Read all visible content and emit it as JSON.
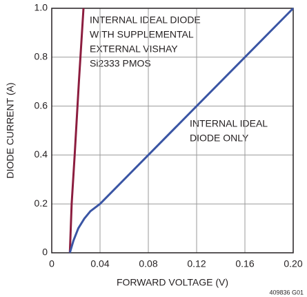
{
  "chart_data": {
    "type": "line",
    "x_label": "FORWARD VOLTAGE (V)",
    "y_label": "DIODE CURRENT (A)",
    "figure_id": "409836 G01",
    "annotations": [
      {
        "lines": [
          "INTERNAL IDEAL DIODE",
          "WITH SUPPLEMENTAL",
          "EXTERNAL VISHAY",
          "Si2333 PMOS"
        ]
      },
      {
        "lines": [
          "INTERNAL IDEAL",
          "DIODE ONLY"
        ]
      }
    ],
    "xlim": [
      0,
      0.2
    ],
    "ylim": [
      0,
      1.0
    ],
    "xticks": [
      0,
      0.04,
      0.08,
      0.12,
      0.16,
      {
        "value": 0.2,
        "label": "0.20"
      }
    ],
    "yticks": [
      0,
      0.2,
      0.4,
      0.6,
      0.8,
      {
        "value": 1.0,
        "label": "1.0"
      }
    ],
    "grid": true,
    "series": [
      {
        "color": "#8c1d3f",
        "x": [
          0.015,
          0.0165,
          0.019,
          0.0225,
          0.0263
        ],
        "values": [
          0,
          0.2,
          0.4,
          0.7,
          1.0
        ]
      },
      {
        "color": "#3a55a4",
        "x": [
          0.015,
          0.018,
          0.022,
          0.027,
          0.032,
          0.04,
          0.2
        ],
        "values": [
          0,
          0.05,
          0.1,
          0.14,
          0.17,
          0.2,
          1.0
        ]
      }
    ]
  }
}
